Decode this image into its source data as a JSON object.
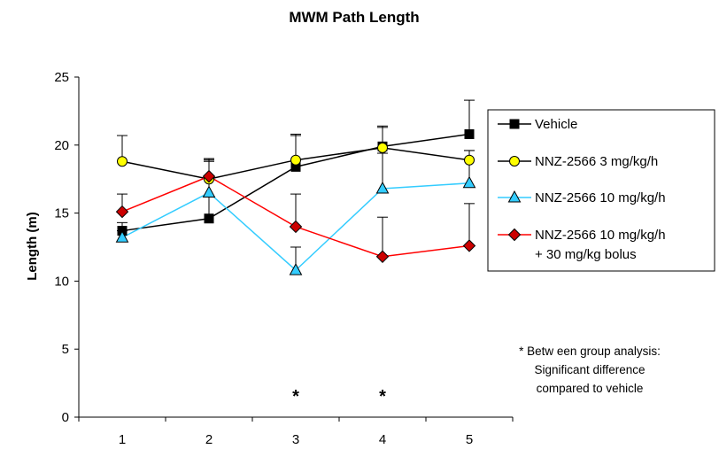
{
  "chart_data": {
    "type": "line",
    "title": "MWM Path Length",
    "xlabel": "",
    "ylabel": "Length (m)",
    "x": [
      1,
      2,
      3,
      4,
      5
    ],
    "ylim": [
      0,
      25
    ],
    "yticks": [
      0,
      5,
      10,
      15,
      20,
      25
    ],
    "grid": false,
    "legend_position": "right",
    "series": [
      {
        "name": "Vehicle",
        "color": "#000000",
        "marker": "square",
        "values": [
          13.7,
          14.6,
          18.4,
          19.9,
          20.8
        ],
        "errors": [
          0.6,
          4.2,
          2.4,
          1.5,
          2.5
        ]
      },
      {
        "name": "NNZ-2566 3 mg/kg/h",
        "color": "#000000",
        "marker_fill": "#ffff00",
        "marker": "circle",
        "values": [
          18.8,
          17.5,
          18.9,
          19.8,
          18.9
        ],
        "errors": [
          1.9,
          1.5,
          1.8,
          1.5,
          0.7
        ]
      },
      {
        "name": "NNZ-2566 10 mg/kg/h",
        "color": "#33ccff",
        "marker_fill": "#33ccff",
        "marker": "triangle",
        "values": [
          13.2,
          16.5,
          10.8,
          16.8,
          17.2
        ],
        "errors": [
          0.5,
          2.4,
          1.7,
          2.6,
          2.4
        ]
      },
      {
        "name": "NNZ-2566 10 mg/kg/h\n+ 30 mg/kg bolus",
        "color": "#ff0000",
        "marker_fill": "#cc0000",
        "marker": "diamond",
        "values": [
          15.1,
          17.7,
          14.0,
          11.8,
          12.6
        ],
        "errors": [
          1.3,
          1.3,
          2.4,
          2.9,
          3.1
        ]
      }
    ],
    "annotations": [
      {
        "text": "*",
        "x": 3
      },
      {
        "text": "*",
        "x": 4
      }
    ],
    "note": [
      "* Betw een group analysis:",
      "Significant difference",
      "compared to vehicle"
    ]
  }
}
